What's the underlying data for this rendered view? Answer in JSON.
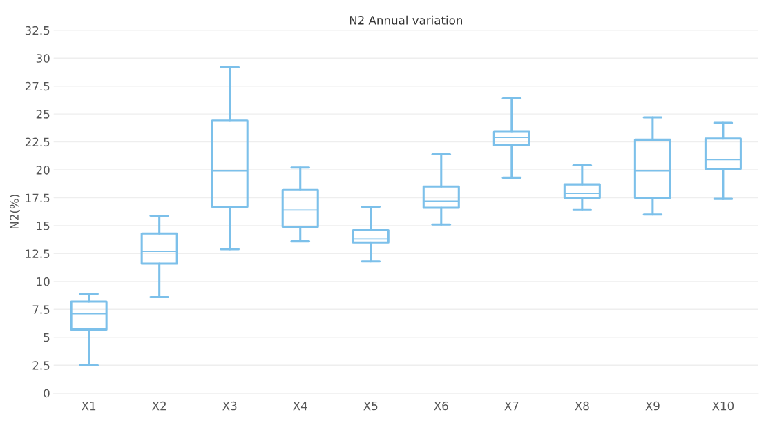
{
  "chart_data": {
    "type": "box",
    "title": "N2 Annual variation",
    "ylabel": "N2(%)",
    "categories": [
      "X1",
      "X2",
      "X3",
      "X4",
      "X5",
      "X6",
      "X7",
      "X8",
      "X9",
      "X10"
    ],
    "color": "#7cc0ea",
    "boxes": [
      {
        "low": 2.5,
        "q1": 5.7,
        "median": 7.1,
        "q3": 8.2,
        "high": 8.9
      },
      {
        "low": 8.6,
        "q1": 11.6,
        "median": 12.7,
        "q3": 14.3,
        "high": 15.9
      },
      {
        "low": 12.9,
        "q1": 16.7,
        "median": 19.9,
        "q3": 24.4,
        "high": 29.2
      },
      {
        "low": 13.6,
        "q1": 14.9,
        "median": 16.4,
        "q3": 18.2,
        "high": 20.2
      },
      {
        "low": 11.8,
        "q1": 13.5,
        "median": 13.8,
        "q3": 14.6,
        "high": 16.7
      },
      {
        "low": 15.1,
        "q1": 16.6,
        "median": 17.2,
        "q3": 18.5,
        "high": 21.4
      },
      {
        "low": 19.3,
        "q1": 22.2,
        "median": 22.9,
        "q3": 23.4,
        "high": 26.4
      },
      {
        "low": 16.4,
        "q1": 17.5,
        "median": 17.9,
        "q3": 18.7,
        "high": 20.4
      },
      {
        "low": 16.0,
        "q1": 17.5,
        "median": 19.9,
        "q3": 22.7,
        "high": 24.7
      },
      {
        "low": 17.4,
        "q1": 20.1,
        "median": 20.9,
        "q3": 22.8,
        "high": 24.2
      }
    ],
    "ylim": [
      0,
      32.5
    ],
    "yticks": [
      0,
      2.5,
      5,
      7.5,
      10,
      12.5,
      15,
      17.5,
      20,
      22.5,
      25,
      27.5,
      30,
      32.5
    ],
    "grid": "y"
  }
}
